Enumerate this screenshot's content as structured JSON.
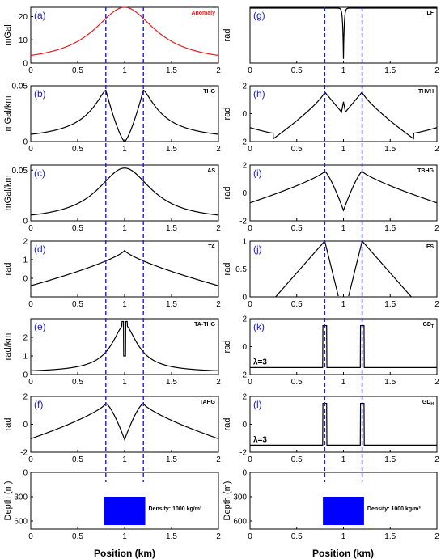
{
  "x_label": "Position (km)",
  "colors": {
    "curve": "#000000",
    "anomaly": "#e8191c",
    "marker": "#1b1bdb",
    "panel_letter": "#1b1bdb",
    "body": "#0000ff"
  },
  "chart_data": [
    {
      "type": "line",
      "panel": "(a)",
      "name": "Anomaly",
      "ylabel": "mGal",
      "xlim": [
        0,
        2
      ],
      "ylim": [
        0,
        24
      ],
      "yticks": [
        0,
        10,
        20
      ],
      "xticks": [
        0,
        0.5,
        1,
        1.5,
        2
      ],
      "curve": "anomaly",
      "label_color": "red"
    },
    {
      "type": "line",
      "panel": "(b)",
      "name": "THG",
      "ylabel": "mGal/km",
      "xlim": [
        0,
        2
      ],
      "ylim": [
        0,
        0.05
      ],
      "yticks": [
        0,
        0.05
      ],
      "xticks": [
        0,
        0.5,
        1,
        1.5,
        2
      ],
      "curve": "thg"
    },
    {
      "type": "line",
      "panel": "(c)",
      "name": "AS",
      "ylabel": "mGal/km",
      "xlim": [
        0,
        2
      ],
      "ylim": [
        0,
        0.055
      ],
      "yticks": [
        0,
        0.05
      ],
      "xticks": [
        0,
        0.5,
        1,
        1.5,
        2
      ],
      "curve": "as"
    },
    {
      "type": "line",
      "panel": "(d)",
      "name": "TA",
      "ylabel": "rad",
      "xlim": [
        0,
        2
      ],
      "ylim": [
        -1,
        2
      ],
      "yticks": [
        0,
        1,
        2
      ],
      "xticks": [
        0,
        0.5,
        1,
        1.5,
        2
      ],
      "curve": "ta"
    },
    {
      "type": "line",
      "panel": "(e)",
      "name": "TA-THG",
      "ylabel": "rad/km",
      "xlim": [
        0,
        2
      ],
      "ylim": [
        0,
        3
      ],
      "yticks": [
        0,
        1,
        2
      ],
      "xticks": [
        0,
        0.5,
        1,
        1.5,
        2
      ],
      "curve": "tathg"
    },
    {
      "type": "line",
      "panel": "(f)",
      "name": "TAHG",
      "ylabel": "rad",
      "xlim": [
        0,
        2
      ],
      "ylim": [
        -2,
        2
      ],
      "yticks": [
        -2,
        0,
        2
      ],
      "xticks": [
        0,
        0.5,
        1,
        1.5,
        2
      ],
      "curve": "tahg"
    },
    {
      "type": "bar",
      "panel": "",
      "name": "",
      "ylabel": "Depth (m)",
      "xlim": [
        0,
        2
      ],
      "ylim": [
        0,
        700
      ],
      "yticks": [
        0,
        300,
        600
      ],
      "xticks": [
        0,
        0.5,
        1,
        1.5,
        2
      ],
      "curve": "body",
      "body": {
        "x0": 0.78,
        "x1": 1.22,
        "top": 300,
        "bottom": 700,
        "label": "Density: 1000 kg/m³"
      }
    },
    {
      "type": "line",
      "panel": "(g)",
      "name": "ILF",
      "ylabel": "rad",
      "xlim": [
        0,
        2
      ],
      "ylim": [
        -1.7,
        1.6
      ],
      "yticks": [],
      "xticks": [
        0,
        0.5,
        1,
        1.5,
        2
      ],
      "curve": "ilf"
    },
    {
      "type": "line",
      "panel": "(h)",
      "name": "THVH",
      "ylabel": "rad",
      "xlim": [
        0,
        2
      ],
      "ylim": [
        -2,
        2
      ],
      "yticks": [
        -2,
        0,
        2
      ],
      "xticks": [
        0,
        0.5,
        1,
        1.5,
        2
      ],
      "curve": "thvh"
    },
    {
      "type": "line",
      "panel": "(i)",
      "name": "TBHG",
      "ylabel": "rad",
      "xlim": [
        0,
        2
      ],
      "ylim": [
        -2,
        2
      ],
      "yticks": [
        -2,
        0,
        2
      ],
      "xticks": [
        0,
        0.5,
        1,
        1.5,
        2
      ],
      "curve": "tbhg"
    },
    {
      "type": "line",
      "panel": "(j)",
      "name": "FS",
      "ylabel": "rad",
      "xlim": [
        0,
        2
      ],
      "ylim": [
        0,
        1
      ],
      "yticks": [
        0,
        0.5,
        1
      ],
      "xticks": [
        0,
        0.5,
        1,
        1.5,
        2
      ],
      "curve": "fs"
    },
    {
      "type": "line",
      "panel": "(k)",
      "name": "GD",
      "name_sub": "T",
      "ylabel": "rad",
      "xlim": [
        0,
        2
      ],
      "ylim": [
        -2,
        2
      ],
      "yticks": [
        -2,
        0,
        2
      ],
      "xticks": [
        0,
        0.5,
        1,
        1.5,
        2
      ],
      "curve": "gd",
      "lambda_label": "λ=3"
    },
    {
      "type": "line",
      "panel": "(l)",
      "name": "GD",
      "name_sub": "H",
      "ylabel": "rad",
      "xlim": [
        0,
        2
      ],
      "ylim": [
        -2,
        2
      ],
      "yticks": [
        -2,
        0,
        2
      ],
      "xticks": [
        0,
        0.5,
        1,
        1.5,
        2
      ],
      "curve": "gd",
      "lambda_label": "λ=3"
    },
    {
      "type": "bar",
      "panel": "",
      "name": "",
      "ylabel": "Depth (m)",
      "xlim": [
        0,
        2
      ],
      "ylim": [
        0,
        700
      ],
      "yticks": [
        0,
        300,
        600
      ],
      "xticks": [
        0,
        0.5,
        1,
        1.5,
        2
      ],
      "curve": "body",
      "body": {
        "x0": 0.78,
        "x1": 1.22,
        "top": 300,
        "bottom": 700,
        "label": "Density: 1000 kg/m³"
      }
    }
  ],
  "edges_x": [
    0.8,
    1.2
  ]
}
